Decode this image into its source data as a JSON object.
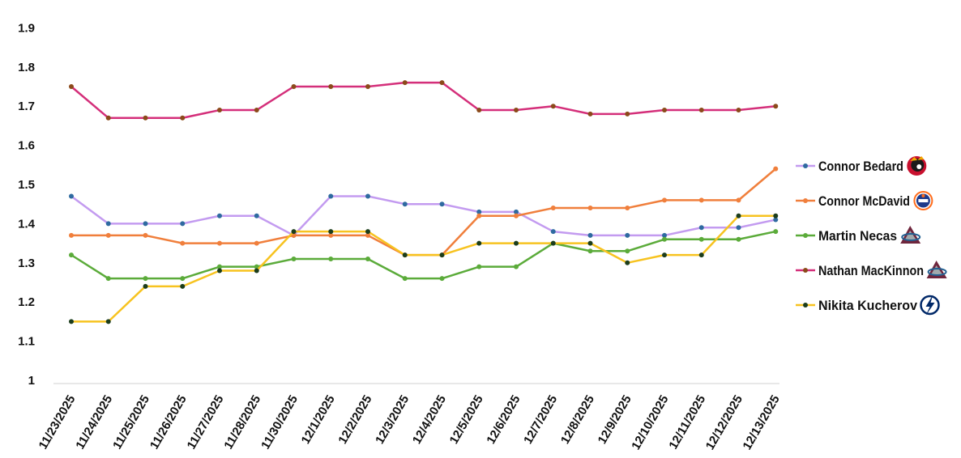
{
  "chart_data": {
    "type": "line",
    "title": "",
    "xlabel": "",
    "ylabel": "",
    "ylim": [
      1,
      1.9
    ],
    "yticks": [
      "1",
      "1.1",
      "1.2",
      "1.3",
      "1.4",
      "1.5",
      "1.6",
      "1.7",
      "1.8",
      "1.9"
    ],
    "categories": [
      "11/23/2025",
      "11/24/2025",
      "11/25/2025",
      "11/26/2025",
      "11/27/2025",
      "11/28/2025",
      "11/30/2025",
      "12/1/2025",
      "12/2/2025",
      "12/3/2025",
      "12/4/2025",
      "12/5/2025",
      "12/6/2025",
      "12/7/2025",
      "12/8/2025",
      "12/9/2025",
      "12/10/2025",
      "12/11/2025",
      "12/12/2025",
      "12/13/2025"
    ],
    "grid": false,
    "legend_position": "right",
    "series": [
      {
        "name": "Connor Bedard",
        "color": "#c39bf0",
        "marker": "#2e6aa0",
        "icon": "blackhawks-logo-icon",
        "values": [
          1.47,
          1.4,
          1.4,
          1.4,
          1.42,
          1.42,
          1.37,
          1.47,
          1.47,
          1.45,
          1.45,
          1.43,
          1.43,
          1.38,
          1.37,
          1.37,
          1.37,
          1.39,
          1.39,
          1.41
        ]
      },
      {
        "name": "Connor McDavid",
        "color": "#f07f3c",
        "marker": "#f07f3c",
        "icon": "oilers-logo-icon",
        "values": [
          1.37,
          1.37,
          1.37,
          1.35,
          1.35,
          1.35,
          1.37,
          1.37,
          1.37,
          1.32,
          1.32,
          1.42,
          1.42,
          1.44,
          1.44,
          1.44,
          1.46,
          1.46,
          1.46,
          1.54
        ]
      },
      {
        "name": "Martin Necas",
        "color": "#5bab3a",
        "marker": "#5bab3a",
        "icon": "avalanche-logo-icon",
        "values": [
          1.32,
          1.26,
          1.26,
          1.26,
          1.29,
          1.29,
          1.31,
          1.31,
          1.31,
          1.26,
          1.26,
          1.29,
          1.29,
          1.35,
          1.33,
          1.33,
          1.36,
          1.36,
          1.36,
          1.38
        ]
      },
      {
        "name": "Nathan MacKinnon",
        "color": "#d42f7a",
        "marker": "#8b4a1a",
        "icon": "avalanche-logo-icon",
        "values": [
          1.75,
          1.67,
          1.67,
          1.67,
          1.69,
          1.69,
          1.75,
          1.75,
          1.75,
          1.76,
          1.76,
          1.69,
          1.69,
          1.7,
          1.68,
          1.68,
          1.69,
          1.69,
          1.69,
          1.7
        ]
      },
      {
        "name": "Nikita Kucherov",
        "color": "#f7c320",
        "marker": "#1c3d1c",
        "icon": "lightning-logo-icon",
        "values": [
          1.15,
          1.15,
          1.24,
          1.24,
          1.28,
          1.28,
          1.38,
          1.38,
          1.38,
          1.32,
          1.32,
          1.35,
          1.35,
          1.35,
          1.35,
          1.3,
          1.32,
          1.32,
          1.42,
          1.42
        ]
      }
    ]
  }
}
